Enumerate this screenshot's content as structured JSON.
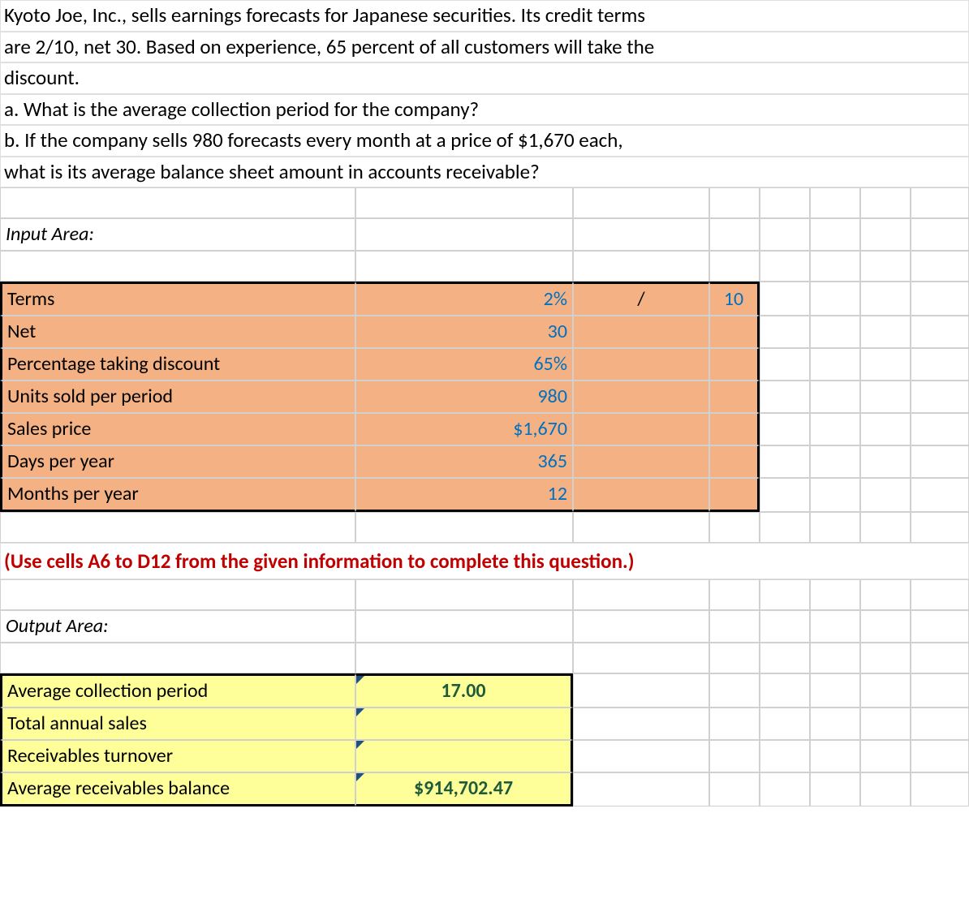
{
  "problem": {
    "line1": "Kyoto Joe, Inc., sells earnings forecasts for Japanese securities. Its credit terms",
    "line2": "are 2/10, net 30. Based on experience, 65 percent of all customers will take the",
    "line3": "discount.",
    "line4": "a. What is the average collection period for the company?",
    "line5": "b. If the company sells 980 forecasts every month at a price of $1,670 each,",
    "line6": "what is its average balance sheet amount in accounts receivable?"
  },
  "labels": {
    "input_area": "Input Area:",
    "output_area": "Output Area:",
    "terms": "Terms",
    "net": "Net",
    "pct_discount": "Percentage taking discount",
    "units_sold": "Units sold per period",
    "sales_price": "Sales price",
    "days_year": "Days per year",
    "months_year": "Months per year",
    "avg_collection": "Average collection period",
    "total_sales": "Total annual sales",
    "recv_turnover": "Receivables turnover",
    "avg_recv_bal": "Average receivables balance"
  },
  "hint": "(Use cells A6 to D12 from the given information to complete this question.)",
  "input": {
    "terms_pct": "2%",
    "terms_sep": "/",
    "terms_days": "10",
    "net": "30",
    "pct_discount": "65%",
    "units_sold": "980",
    "sales_price": "$1,670",
    "days_year": "365",
    "months_year": "12"
  },
  "output": {
    "avg_collection": "17.00",
    "total_sales": "",
    "recv_turnover": "",
    "avg_recv_bal": "$914,702.47"
  },
  "style": {
    "peach_bg": "#f4b183",
    "yellow_bg": "#ffff99",
    "blue_text": "#0070c0",
    "hint_color": "#c00000",
    "grid_border": "#d0d0d0",
    "output_text": "#1e5b3a"
  }
}
